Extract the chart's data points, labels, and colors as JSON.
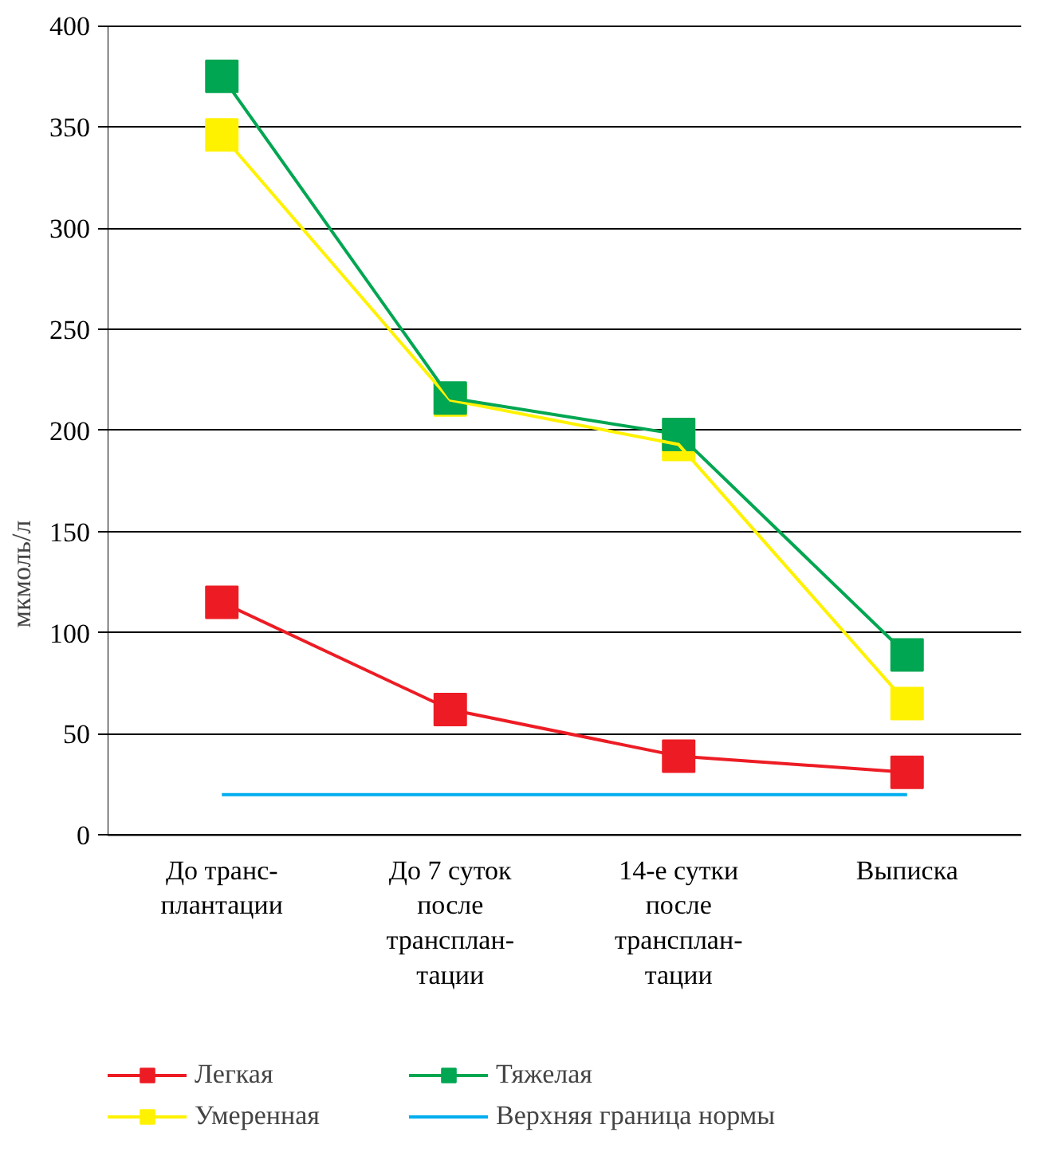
{
  "chart_data": {
    "type": "line",
    "ylabel": "мкмоль/л",
    "categories": [
      "До транс-\nплантации",
      "До 7 суток\nпосле\nтрансплан-\nтации",
      "14-е сутки\nпосле\nтрансплан-\nтации",
      "Выписка"
    ],
    "series": [
      {
        "name": "Легкая",
        "color": "#ed1c24",
        "values": [
          115,
          62,
          39,
          31
        ]
      },
      {
        "name": "Умеренная",
        "color": "#fff200",
        "values": [
          346,
          215,
          193,
          65
        ]
      },
      {
        "name": "Тяжелая",
        "color": "#00a651",
        "values": [
          375,
          216,
          198,
          89
        ]
      }
    ],
    "ref_lines": [
      {
        "axis": "y",
        "value": 20,
        "label": "Верхняя граница нормы",
        "color": "#00aeef"
      }
    ],
    "ylim": [
      0,
      400
    ],
    "yticks": [
      0,
      50,
      100,
      150,
      200,
      250,
      300,
      350,
      400
    ],
    "grid": "y",
    "legend": "bottom",
    "marker": "square",
    "line_style": "solid"
  }
}
